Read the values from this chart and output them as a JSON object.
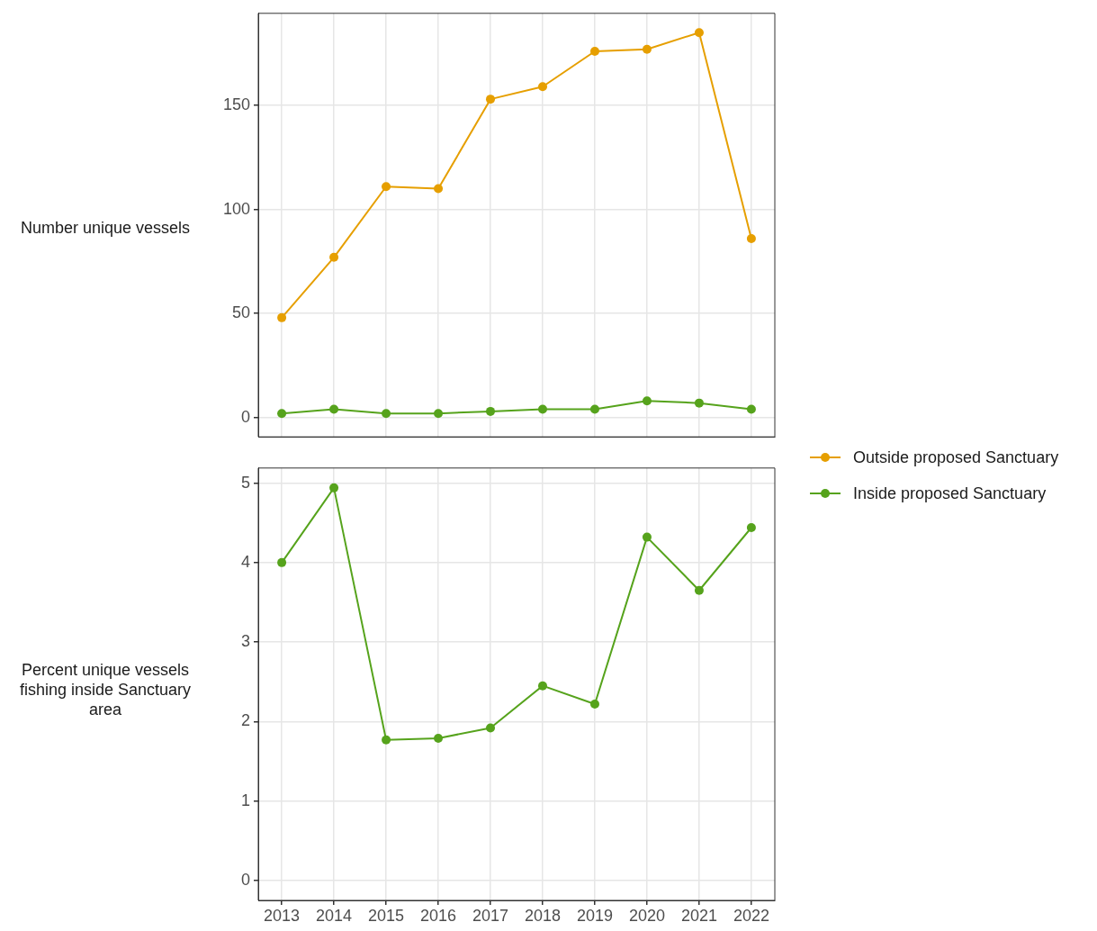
{
  "chart_data": [
    {
      "type": "line",
      "ylabel": "Number unique vessels",
      "x": [
        2013,
        2014,
        2015,
        2016,
        2017,
        2018,
        2019,
        2020,
        2021,
        2022
      ],
      "series": [
        {
          "name": "Outside proposed Sanctuary",
          "color": "#e69f00",
          "values": [
            48,
            77,
            111,
            110,
            153,
            159,
            176,
            177,
            185,
            86
          ]
        },
        {
          "name": "Inside proposed Sanctuary",
          "color": "#56a31c",
          "values": [
            2,
            4,
            2,
            2,
            3,
            4,
            4,
            8,
            7,
            4
          ]
        }
      ],
      "xlim": [
        2012.55,
        2022.45
      ],
      "xticks": [
        2013,
        2014,
        2015,
        2016,
        2017,
        2018,
        2019,
        2020,
        2021,
        2022
      ],
      "ylim": [
        -9.25,
        194.25
      ],
      "yticks": [
        0,
        50,
        100,
        150
      ],
      "grid": true,
      "legend": "right",
      "marker": "circle",
      "line_style": "solid",
      "tick_labels": "y"
    },
    {
      "type": "line",
      "ylabel": "Percent unique vessels fishing inside Sanctuary area",
      "x": [
        2013,
        2014,
        2015,
        2016,
        2017,
        2018,
        2019,
        2020,
        2021,
        2022
      ],
      "series": [
        {
          "color": "#56a31c",
          "values": [
            4.0,
            4.94,
            1.77,
            1.79,
            1.92,
            2.45,
            2.22,
            4.32,
            3.65,
            4.44
          ]
        }
      ],
      "xlim": [
        2012.55,
        2022.45
      ],
      "xticks": [
        2013,
        2014,
        2015,
        2016,
        2017,
        2018,
        2019,
        2020,
        2021,
        2022
      ],
      "ylim": [
        -0.25,
        5.19
      ],
      "yticks": [
        0,
        1,
        2,
        3,
        4,
        5
      ],
      "grid": true,
      "marker": "circle",
      "line_style": "solid"
    }
  ]
}
